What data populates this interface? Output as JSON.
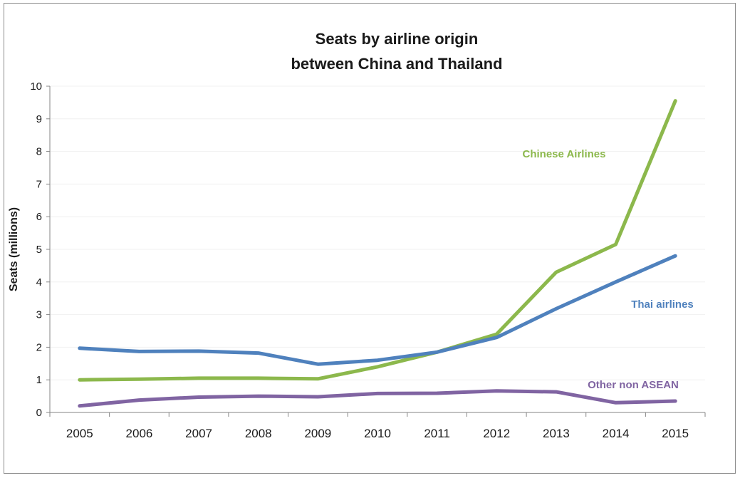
{
  "chart_data": {
    "type": "line",
    "title_lines": [
      "Seats by airline origin",
      "between China and Thailand"
    ],
    "ylabel": "Seats (millions)",
    "xlabel": "",
    "ylim": [
      0,
      10
    ],
    "yticks": [
      "0",
      "1",
      "2",
      "3",
      "4",
      "5",
      "6",
      "7",
      "8",
      "9",
      "10"
    ],
    "x": [
      "2005",
      "2006",
      "2007",
      "2008",
      "2009",
      "2010",
      "2011",
      "2012",
      "2013",
      "2014",
      "2015"
    ],
    "grid": true,
    "series": [
      {
        "name": "Chinese Airlines",
        "color": "#8cb84c",
        "values": [
          1.0,
          1.02,
          1.05,
          1.05,
          1.03,
          1.4,
          1.85,
          2.4,
          4.3,
          5.15,
          9.55
        ]
      },
      {
        "name": "Thai airlines",
        "color": "#4f81bd",
        "values": [
          1.97,
          1.87,
          1.88,
          1.82,
          1.48,
          1.6,
          1.85,
          2.3,
          3.18,
          4.0,
          4.8
        ]
      },
      {
        "name": "Other non ASEAN",
        "color": "#8064a2",
        "values": [
          0.2,
          0.38,
          0.47,
          0.5,
          0.48,
          0.58,
          0.59,
          0.66,
          0.63,
          0.3,
          0.35
        ]
      }
    ]
  }
}
